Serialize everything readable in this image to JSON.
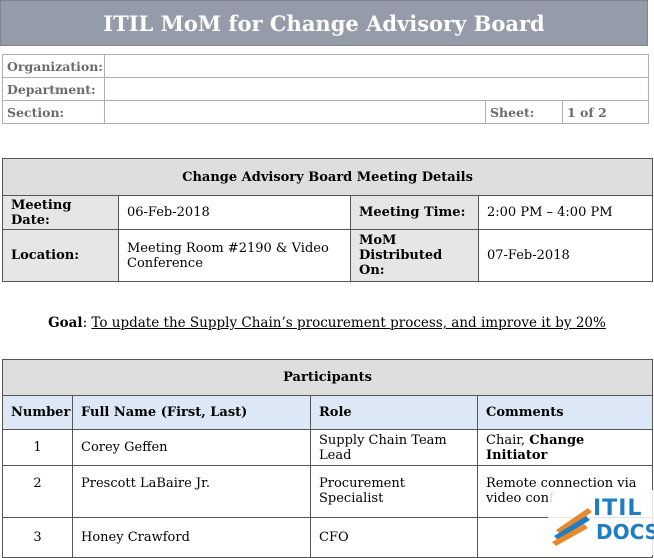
{
  "document": {
    "title": "ITIL MoM for Change Advisory Board"
  },
  "header_fields": {
    "organization_label": "Organization:",
    "organization_value": "",
    "department_label": "Department:",
    "department_value": "",
    "section_label": "Section:",
    "section_value": "",
    "sheet_label": "Sheet:",
    "sheet_value": "1 of 2"
  },
  "meeting": {
    "heading": "Change Advisory Board Meeting Details",
    "date_label": "Meeting Date:",
    "date_value": "06-Feb-2018",
    "time_label": "Meeting Time:",
    "time_value": "2:00 PM – 4:00 PM",
    "location_label": "Location:",
    "location_value": "Meeting Room #2190 & Video Conference",
    "distributed_label": "MoM Distributed On:",
    "distributed_value": "07-Feb-2018"
  },
  "goal": {
    "label": "Goal",
    "text": "To update the Supply Chain’s procurement process, and improve it by 20%"
  },
  "participants": {
    "heading": "Participants",
    "columns": [
      "Number",
      "Full Name (First, Last)",
      "Role",
      "Comments"
    ],
    "rows": [
      {
        "number": "1",
        "name": "Corey Geffen",
        "role": "Supply Chain Team Lead",
        "comment_prefix": "Chair, ",
        "comment_bold": "Change Initiator"
      },
      {
        "number": "2",
        "name": "Prescott LaBaire Jr.",
        "role": "Procurement Specialist",
        "comment_prefix": "Remote connection via video conf",
        "comment_bold": ""
      },
      {
        "number": "3",
        "name": "Honey Crawford",
        "role": "CFO",
        "comment_prefix": "",
        "comment_bold": ""
      }
    ]
  },
  "logo": {
    "line1": "ITIL",
    "line2": "DOCS",
    "color": "#1f7ec2",
    "accent": "#e8892b"
  }
}
